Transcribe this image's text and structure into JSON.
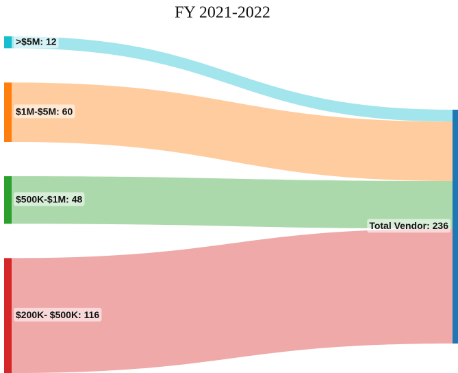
{
  "chart_data": {
    "type": "sankey",
    "title": "FY 2021-2022",
    "nodes": [
      {
        "label": ">$5M: 12",
        "color": "#17becf"
      },
      {
        "label": "$1M-$5M: 60",
        "color": "#ff7f0e"
      },
      {
        "label": "$500K-$1M: 48",
        "color": "#2ca02c"
      },
      {
        "label": "$200K- $500K: 116",
        "color": "#d62728"
      },
      {
        "label": "Total Vendor: 236",
        "color": "#1f77b4"
      }
    ],
    "links": [
      {
        "source": 0,
        "target": 4,
        "value": 12
      },
      {
        "source": 1,
        "target": 4,
        "value": 60
      },
      {
        "source": 2,
        "target": 4,
        "value": 48
      },
      {
        "source": 3,
        "target": 4,
        "value": 116
      }
    ]
  }
}
